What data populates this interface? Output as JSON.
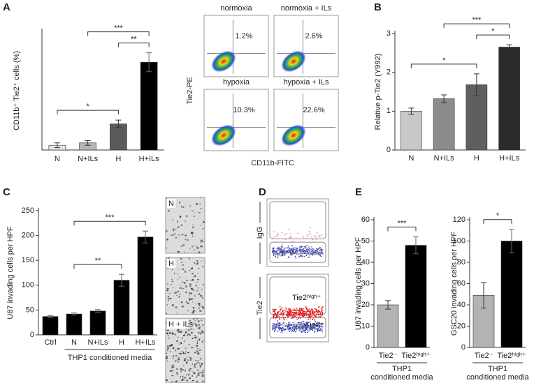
{
  "panel_letters": [
    "A",
    "B",
    "C",
    "D",
    "E"
  ],
  "chart_data": [
    {
      "type": "bar",
      "ylabel": "CD11b⁺ Tie2⁺ cells (%)",
      "categories": [
        "N",
        "N+ILs",
        "H",
        "H+ILs"
      ],
      "values": [
        1,
        1.5,
        5.5,
        18.5
      ],
      "errors": [
        0.5,
        0.5,
        0.8,
        2
      ],
      "colors": [
        "#e3e3e3",
        "#b5b5b5",
        "#5a5a5a",
        "#000000"
      ],
      "ylim": [
        0,
        25
      ],
      "brackets": [
        {
          "text": "*",
          "between": [
            "N",
            "H"
          ]
        },
        {
          "text": "**",
          "between": [
            "H",
            "H+ILs"
          ]
        },
        {
          "text": "***",
          "between": [
            "N+ILs",
            "H+ILs"
          ]
        }
      ]
    },
    {
      "type": "bar",
      "ylabel": "Relative p-Tie2 (Y992)",
      "categories": [
        "N",
        "N+ILs",
        "H",
        "H+ILs"
      ],
      "values": [
        1,
        1.32,
        1.68,
        2.65
      ],
      "errors": [
        0.08,
        0.1,
        0.28,
        0.06
      ],
      "colors": [
        "#c8c8c8",
        "#8c8c8c",
        "#5f5f5f",
        "#2a2a2a"
      ],
      "ylim": [
        0,
        3
      ],
      "yticks": [
        0,
        1,
        2,
        3
      ],
      "brackets": [
        {
          "text": "*",
          "between": [
            "N",
            "H"
          ]
        },
        {
          "text": "*",
          "between": [
            "H",
            "H+ILs"
          ]
        },
        {
          "text": "***",
          "between": [
            "N+ILs",
            "H+ILs"
          ]
        }
      ]
    },
    {
      "type": "bar",
      "ylabel": "U87 invading cells per HPF",
      "xlabel": "THP1 conditioned media",
      "xlabel_span": [
        "N",
        "H+ILs"
      ],
      "categories": [
        "Ctrl",
        "N",
        "N+ILs",
        "H",
        "H+ILs"
      ],
      "values": [
        37,
        42,
        48,
        110,
        197
      ],
      "errors": [
        2,
        2,
        3,
        12,
        12
      ],
      "colors": [
        "#000000",
        "#000000",
        "#000000",
        "#000000",
        "#000000"
      ],
      "ylim": [
        0,
        250
      ],
      "yticks": [
        0,
        50,
        100,
        150,
        200,
        250
      ],
      "brackets": [
        {
          "text": "**",
          "between": [
            "N",
            "H"
          ]
        },
        {
          "text": "***",
          "between": [
            "N",
            "H+ILs"
          ]
        }
      ]
    },
    {
      "type": "bar",
      "ylabel": "U87 invading cells per HPF",
      "xlabel": [
        "THP1",
        "conditioned media"
      ],
      "xlabel_span": [
        "Tie2⁻",
        "Tie2ʰⁱᵍʰ⁺"
      ],
      "categories": [
        "Tie2⁻",
        "Tie2ʰⁱᵍʰ⁺"
      ],
      "values": [
        20,
        48
      ],
      "errors": [
        2,
        4
      ],
      "colors": [
        "#b3b3b3",
        "#000000"
      ],
      "ylim": [
        0,
        60
      ],
      "yticks": [
        0,
        10,
        20,
        30,
        40,
        50,
        60
      ],
      "brackets": [
        {
          "text": "***",
          "between": [
            "Tie2⁻",
            "Tie2ʰⁱᵍʰ⁺"
          ]
        }
      ]
    },
    {
      "type": "bar",
      "ylabel": "GSC20 invading cells per HPF",
      "xlabel": [
        "THP1",
        "conditioned media"
      ],
      "xlabel_span": [
        "Tie2⁻",
        "Tie2ʰⁱᵍʰ⁺"
      ],
      "categories": [
        "Tie2⁻",
        "Tie2ʰⁱᵍʰ⁺"
      ],
      "values": [
        49,
        100
      ],
      "errors": [
        12,
        11
      ],
      "colors": [
        "#b3b3b3",
        "#000000"
      ],
      "ylim": [
        0,
        120
      ],
      "yticks": [
        0,
        20,
        40,
        60,
        80,
        100,
        120
      ],
      "brackets": [
        {
          "text": "*",
          "between": [
            "Tie2⁻",
            "Tie2ʰⁱᵍʰ⁺"
          ]
        }
      ]
    }
  ],
  "flow_a": {
    "ylabel": "Tie2-PE",
    "xlabel": "CD11b-FITC",
    "plots": [
      {
        "title": "normoxia",
        "percent": "1.2%"
      },
      {
        "title": "normoxia + ILs",
        "percent": "2.6%"
      },
      {
        "title": "hypoxia",
        "percent": "10.3%"
      },
      {
        "title": "hypoxia + ILs",
        "percent": "22.6%"
      }
    ]
  },
  "images_c": {
    "labels": [
      "N",
      "H",
      "H + ILs"
    ]
  },
  "flow_d": {
    "labels": [
      "IgG",
      "Tie2"
    ],
    "gate_high": "Tie2ʰⁱᵍʰ⁺",
    "gate_low": "Tie2⁻"
  }
}
